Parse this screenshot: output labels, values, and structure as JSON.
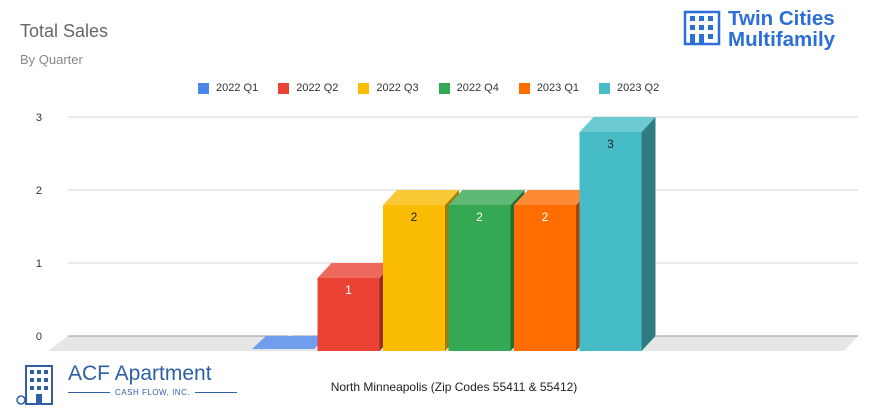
{
  "header": {
    "title": "Total Sales",
    "subtitle": "By Quarter",
    "logo_line1": "Twin Cities",
    "logo_line2": "Multifamily"
  },
  "footer": {
    "logo_main": "ACF Apartment",
    "logo_sub": "CASH FLOW, INC."
  },
  "chart_data": {
    "type": "bar",
    "title": "Total Sales",
    "subtitle": "By Quarter",
    "xlabel": "North Minneapolis (Zip Codes 55411 & 55412)",
    "ylabel": "",
    "ylim": [
      0,
      3
    ],
    "yticks": [
      0,
      1,
      2,
      3
    ],
    "grid": true,
    "legend_position": "top",
    "three_d": true,
    "series": [
      {
        "name": "2022 Q1",
        "value": 0,
        "color": "#4a86e8"
      },
      {
        "name": "2022 Q2",
        "value": 1,
        "color": "#ea4335"
      },
      {
        "name": "2022 Q3",
        "value": 2,
        "color": "#fbbc04"
      },
      {
        "name": "2022 Q4",
        "value": 2,
        "color": "#34a853"
      },
      {
        "name": "2023 Q1",
        "value": 2,
        "color": "#ff6d01"
      },
      {
        "name": "2023 Q2",
        "value": 3,
        "color": "#46bdc6"
      }
    ]
  }
}
